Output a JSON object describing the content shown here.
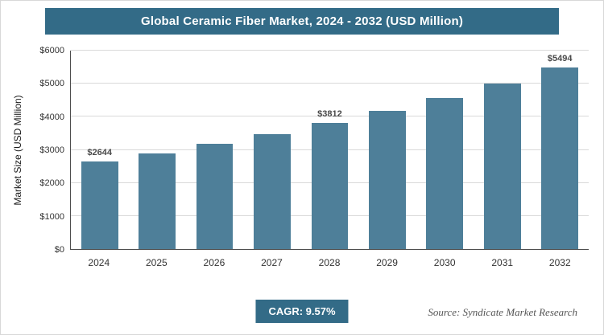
{
  "title": "Global Ceramic Fiber Market, 2024 - 2032 (USD Million)",
  "colors": {
    "banner": "#336b87",
    "bar": "#4e7f99",
    "grid": "#d9d9d9",
    "axis": "#4d4d4d"
  },
  "chart_data": {
    "type": "bar",
    "title": "Global Ceramic Fiber Market, 2024 - 2032 (USD Million)",
    "categories": [
      "2024",
      "2025",
      "2026",
      "2027",
      "2028",
      "2029",
      "2030",
      "2031",
      "2032"
    ],
    "values": [
      2644,
      2897,
      3174,
      3478,
      3812,
      4176,
      4576,
      5014,
      5494
    ],
    "data_labels": [
      "$2644",
      "",
      "",
      "",
      "$3812",
      "",
      "",
      "",
      "$5494"
    ],
    "xlabel": "",
    "ylabel": "Market Size (USD Million)",
    "ylim": [
      0,
      6000
    ],
    "yticks": [
      "$0",
      "$1000",
      "$2000",
      "$3000",
      "$4000",
      "$5000",
      "$6000"
    ],
    "grid": true,
    "legend": false
  },
  "footer": {
    "cagr_label": "CAGR: 9.57%",
    "source": "Source: Syndicate Market Research"
  }
}
